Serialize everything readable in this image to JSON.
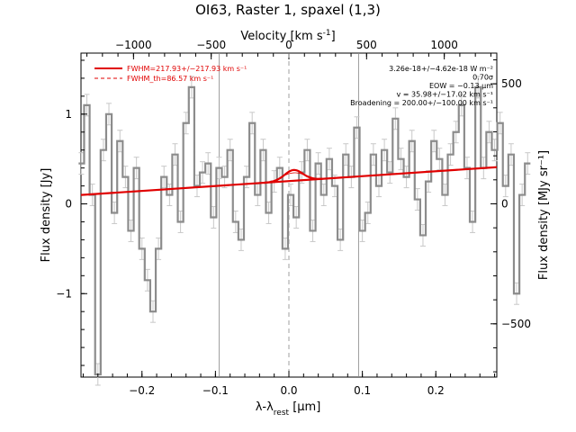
{
  "chart_data": {
    "type": "line",
    "title": "OI63, Raster 1, spaxel (1,3)",
    "xlabel": "λ-λrest [μm]",
    "xlabel_parts": {
      "main": "λ-λ",
      "sub": "rest",
      "unit": " [μm]"
    },
    "ylabel_left": "Flux density [Jy]",
    "ylabel_right": "Flux density [MJy sr⁻¹]",
    "top_axis_label": "Velocity [km s⁻¹]",
    "xlim": [
      -0.283,
      0.283
    ],
    "ylim": [
      -1.93,
      1.68
    ],
    "y2lim": [
      -722,
      628
    ],
    "vel_lim": [
      -1338,
      1338
    ],
    "x_ticks": [
      {
        "v": -0.2,
        "label": "−0.2"
      },
      {
        "v": -0.1,
        "label": "−0.1"
      },
      {
        "v": 0.0,
        "label": "0.0"
      },
      {
        "v": 0.1,
        "label": "0.1"
      },
      {
        "v": 0.2,
        "label": "0.2"
      }
    ],
    "y_ticks": [
      {
        "v": -1,
        "label": "−1"
      },
      {
        "v": 0,
        "label": "0"
      },
      {
        "v": 1,
        "label": "1"
      }
    ],
    "y2_ticks": [
      {
        "v": -500,
        "label": "−500"
      },
      {
        "v": 0,
        "label": "0"
      },
      {
        "v": 500,
        "label": "500"
      }
    ],
    "vel_ticks": [
      {
        "v": -1000,
        "label": "−1000"
      },
      {
        "v": -500,
        "label": "−500"
      },
      {
        "v": 0,
        "label": "0"
      },
      {
        "v": 500,
        "label": "500"
      },
      {
        "v": 1000,
        "label": "1000"
      }
    ],
    "vertical_lines": [
      -0.095,
      0.0,
      0.095
    ],
    "dashed_line": 0.0,
    "legend": [
      "FWHM=217.93+/−217.93 km s⁻¹",
      "FWHM_th=86.57 km s⁻¹"
    ],
    "annotations": [
      "3.26e-18+/−4.62e-18 W m⁻²",
      "0.70σ",
      "EOW = −0.13 μm",
      "v = 35.98+/−17.02 km s⁻¹",
      "Broadening = 200.00+/−100.00 km s⁻¹"
    ],
    "continuum": {
      "slope": 0.5479,
      "intercept": 0.2542
    },
    "line_fit": {
      "center": 0.0065,
      "amplitude": 0.12,
      "sigma": 0.0123
    },
    "data_x_step": 0.0075,
    "data_x_start": -0.2825,
    "data_y": [
      0.45,
      1.1,
      0.1,
      -1.9,
      0.6,
      1.0,
      -0.1,
      0.7,
      0.3,
      -0.3,
      0.4,
      -0.5,
      -0.85,
      -1.2,
      -0.5,
      0.3,
      0.1,
      0.55,
      -0.2,
      0.9,
      1.3,
      0.2,
      0.35,
      0.45,
      -0.15,
      0.4,
      0.3,
      0.6,
      -0.2,
      -0.4,
      0.3,
      0.9,
      0.1,
      0.6,
      -0.1,
      0.25,
      0.4,
      -0.5,
      0.1,
      -0.15,
      0.35,
      0.6,
      -0.3,
      0.45,
      0.1,
      0.5,
      0.2,
      -0.4,
      0.55,
      0.3,
      0.85,
      -0.3,
      -0.1,
      0.55,
      0.2,
      0.6,
      0.35,
      0.95,
      0.5,
      0.3,
      0.7,
      0.05,
      -0.35,
      0.25,
      0.7,
      0.5,
      0.1,
      0.55,
      0.8,
      1.1,
      0.4,
      -0.2,
      1.3,
      0.4,
      0.8,
      0.6,
      0.9,
      0.2,
      0.55,
      -1.0,
      0.1,
      0.45
    ],
    "error_bar": 0.12
  }
}
